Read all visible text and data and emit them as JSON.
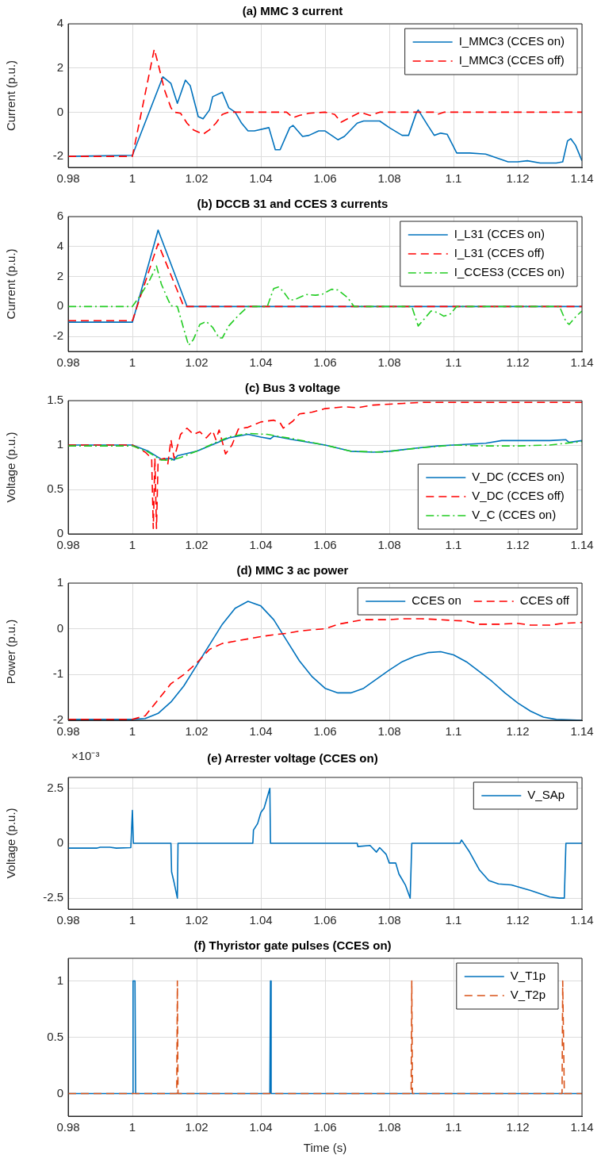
{
  "chart_data": [
    {
      "type": "line",
      "title": "(a) MMC 3 current",
      "ylabel": "Current (p.u.)",
      "xlim": [
        0.98,
        1.14
      ],
      "xticks": [
        0.98,
        1,
        1.02,
        1.04,
        1.06,
        1.08,
        1.1,
        1.12,
        1.14
      ],
      "ylim": [
        -2.5,
        4
      ],
      "yticks": [
        -2,
        0,
        2,
        4
      ],
      "grid": true,
      "legend": "top right",
      "series": [
        {
          "name": "I_MMC3 (CCES on)",
          "color": "#0072bd",
          "line_style": "solid",
          "x": [
            0.98,
            1.0,
            1.0095,
            1.012,
            1.014,
            1.0165,
            1.018,
            1.0205,
            1.022,
            1.024,
            1.025,
            1.028,
            1.03,
            1.032,
            1.034,
            1.036,
            1.038,
            1.0425,
            1.0445,
            1.046,
            1.049,
            1.05,
            1.053,
            1.055,
            1.058,
            1.06,
            1.064,
            1.066,
            1.07,
            1.072,
            1.077,
            1.08,
            1.084,
            1.086,
            1.0885,
            1.089,
            1.092,
            1.094,
            1.096,
            1.098,
            1.101,
            1.105,
            1.11,
            1.117,
            1.12,
            1.123,
            1.127,
            1.132,
            1.134,
            1.1355,
            1.1365,
            1.138,
            1.14
          ],
          "values": [
            -2,
            -1.95,
            1.6,
            1.3,
            0.4,
            1.45,
            1.2,
            -0.2,
            -0.3,
            0.1,
            0.7,
            0.9,
            0.2,
            0,
            -0.5,
            -0.85,
            -0.85,
            -0.7,
            -1.7,
            -1.7,
            -0.7,
            -0.6,
            -1.1,
            -1.05,
            -0.85,
            -0.85,
            -1.25,
            -1.1,
            -0.5,
            -0.4,
            -0.4,
            -0.7,
            -1.05,
            -1.05,
            0,
            0.1,
            -0.6,
            -1.05,
            -0.95,
            -1,
            -1.85,
            -1.85,
            -1.9,
            -2.25,
            -2.25,
            -2.2,
            -2.3,
            -2.3,
            -2.25,
            -1.3,
            -1.2,
            -1.5,
            -2.2
          ]
        },
        {
          "name": "I_MMC3 (CCES off)",
          "color": "#ff0000",
          "line_style": "dashed",
          "x": [
            0.98,
            1.0,
            1.0068,
            1.008,
            1.01,
            1.012,
            1.013,
            1.015,
            1.017,
            1.019,
            1.022,
            1.024,
            1.026,
            1.028,
            1.03,
            1.048,
            1.05,
            1.052,
            1.055,
            1.06,
            1.063,
            1.065,
            1.067,
            1.069,
            1.071,
            1.074,
            1.077,
            1.094,
            1.095,
            1.097,
            1.14
          ],
          "values": [
            -2,
            -2,
            2.85,
            2.2,
            1,
            0.2,
            0,
            -0.05,
            -0.5,
            -0.8,
            -1,
            -0.8,
            -0.5,
            -0.1,
            0,
            0,
            -0.25,
            -0.15,
            -0.05,
            0,
            -0.1,
            -0.45,
            -0.3,
            -0.15,
            0,
            -0.15,
            0,
            0,
            -0.1,
            0,
            0
          ]
        }
      ]
    },
    {
      "type": "line",
      "title": "(b) DCCB 31 and CCES 3 currents",
      "ylabel": "Current (p.u.)",
      "xlim": [
        0.98,
        1.14
      ],
      "xticks": [
        0.98,
        1,
        1.02,
        1.04,
        1.06,
        1.08,
        1.1,
        1.12,
        1.14
      ],
      "ylim": [
        -3,
        6
      ],
      "yticks": [
        -2,
        0,
        2,
        4,
        6
      ],
      "grid": true,
      "legend": "top right",
      "series": [
        {
          "name": "I_L31 (CCES on)",
          "color": "#0072bd",
          "line_style": "solid",
          "x": [
            0.98,
            1.0,
            1.008,
            1.017,
            1.14
          ],
          "values": [
            -1.05,
            -1.05,
            5.1,
            0,
            0
          ]
        },
        {
          "name": "I_L31 (CCES off)",
          "color": "#ff0000",
          "line_style": "dashed",
          "x": [
            0.98,
            1.0,
            1.008,
            1.016,
            1.14
          ],
          "values": [
            -0.95,
            -0.95,
            4.2,
            0,
            0
          ]
        },
        {
          "name": "I_CCES3 (CCES on)",
          "color": "#22cc22",
          "line_style": "dashdot",
          "x": [
            0.98,
            1.0,
            1.002,
            1.005,
            1.0075,
            1.009,
            1.011,
            1.012,
            1.014,
            1.016,
            1.0175,
            1.019,
            1.021,
            1.023,
            1.025,
            1.027,
            1.028,
            1.03,
            1.033,
            1.036,
            1.042,
            1.044,
            1.0455,
            1.047,
            1.049,
            1.051,
            1.054,
            1.057,
            1.059,
            1.062,
            1.064,
            1.067,
            1.069,
            1.087,
            1.089,
            1.091,
            1.093,
            1.095,
            1.097,
            1.099,
            1.101,
            1.133,
            1.135,
            1.136,
            1.138,
            1.14
          ],
          "values": [
            0,
            0,
            0.6,
            1.6,
            2.7,
            1.5,
            0.5,
            0.05,
            0,
            -1.5,
            -2.6,
            -2.2,
            -1.2,
            -1,
            -1.4,
            -2.1,
            -2.1,
            -1.3,
            -0.6,
            0,
            0,
            1.2,
            1.3,
            1,
            0.4,
            0.5,
            0.8,
            0.75,
            0.8,
            1.15,
            1.1,
            0.6,
            0,
            0,
            -1.3,
            -0.8,
            -0.3,
            -0.4,
            -0.65,
            -0.5,
            0,
            0,
            -1,
            -1.2,
            -0.7,
            -0.3
          ]
        }
      ]
    },
    {
      "type": "line",
      "title": "(c) Bus 3 voltage",
      "ylabel": "Voltage (p.u.)",
      "xlim": [
        0.98,
        1.14
      ],
      "xticks": [
        0.98,
        1,
        1.02,
        1.04,
        1.06,
        1.08,
        1.1,
        1.12,
        1.14
      ],
      "ylim": [
        0,
        1.5
      ],
      "yticks": [
        0,
        0.5,
        1,
        1.5
      ],
      "grid": true,
      "legend": "bottom right",
      "series": [
        {
          "name": "V_DC (CCES on)",
          "color": "#0072bd",
          "line_style": "solid",
          "x": [
            0.98,
            1.0,
            1.005,
            1.009,
            1.012,
            1.013,
            1.014,
            1.02,
            1.026,
            1.03,
            1.036,
            1.04,
            1.043,
            1.044,
            1.05,
            1.06,
            1.068,
            1.075,
            1.08,
            1.087,
            1.095,
            1.1,
            1.11,
            1.115,
            1.13,
            1.135,
            1.136,
            1.14
          ],
          "values": [
            1,
            1,
            0.93,
            0.84,
            0.85,
            0.83,
            0.88,
            0.93,
            1.02,
            1.08,
            1.12,
            1.09,
            1.07,
            1.1,
            1.06,
            1,
            0.93,
            0.92,
            0.93,
            0.96,
            0.99,
            1,
            1.02,
            1.05,
            1.05,
            1.06,
            1.03,
            1.05
          ]
        },
        {
          "name": "V_DC (CCES off)",
          "color": "#ff0000",
          "line_style": "dashed",
          "x": [
            0.98,
            1.0,
            1.004,
            1.006,
            1.0065,
            1.007,
            1.0075,
            1.008,
            1.01,
            1.011,
            1.012,
            1.013,
            1.015,
            1.017,
            1.019,
            1.021,
            1.023,
            1.025,
            1.026,
            1.027,
            1.029,
            1.031,
            1.033,
            1.036,
            1.04,
            1.044,
            1.046,
            1.047,
            1.05,
            1.052,
            1.056,
            1.06,
            1.066,
            1.07,
            1.075,
            1.08,
            1.09,
            1.14
          ],
          "values": [
            1,
            1,
            0.92,
            0.85,
            0.06,
            0.85,
            0.06,
            0.83,
            0.85,
            0.78,
            1.06,
            0.85,
            1.12,
            1.19,
            1.12,
            1.15,
            1.08,
            1.16,
            1.06,
            1.17,
            0.9,
            1,
            1.18,
            1.2,
            1.26,
            1.28,
            1.25,
            1.19,
            1.27,
            1.35,
            1.37,
            1.41,
            1.43,
            1.42,
            1.45,
            1.46,
            1.48,
            1.48
          ]
        },
        {
          "name": "V_C (CCES on)",
          "color": "#22cc22",
          "line_style": "dashdot",
          "x": [
            0.98,
            1.0,
            1.005,
            1.009,
            1.012,
            1.015,
            1.02,
            1.026,
            1.03,
            1.036,
            1.042,
            1.05,
            1.06,
            1.068,
            1.078,
            1.09,
            1.1,
            1.11,
            1.12,
            1.13,
            1.14
          ],
          "values": [
            0.99,
            0.99,
            0.92,
            0.83,
            0.83,
            0.86,
            0.93,
            1.03,
            1.09,
            1.13,
            1.12,
            1.07,
            1,
            0.93,
            0.92,
            0.97,
            1,
            0.99,
            0.99,
            1,
            1.04
          ]
        }
      ]
    },
    {
      "type": "line",
      "title": "(d) MMC 3 ac power",
      "ylabel": "Power (p.u.)",
      "xlim": [
        0.98,
        1.14
      ],
      "xticks": [
        0.98,
        1,
        1.02,
        1.04,
        1.06,
        1.08,
        1.1,
        1.12,
        1.14
      ],
      "ylim": [
        -2,
        1
      ],
      "yticks": [
        -2,
        -1,
        0,
        1
      ],
      "grid": true,
      "legend": "top right",
      "series": [
        {
          "name": "CCES on",
          "color": "#0072bd",
          "line_style": "solid",
          "x": [
            0.98,
            1.0,
            1.004,
            1.008,
            1.012,
            1.016,
            1.02,
            1.024,
            1.028,
            1.032,
            1.036,
            1.04,
            1.044,
            1.048,
            1.052,
            1.056,
            1.06,
            1.064,
            1.068,
            1.072,
            1.076,
            1.08,
            1.084,
            1.088,
            1.092,
            1.096,
            1.1,
            1.104,
            1.108,
            1.112,
            1.116,
            1.12,
            1.124,
            1.128,
            1.132,
            1.14
          ],
          "values": [
            -1.98,
            -1.98,
            -1.96,
            -1.85,
            -1.6,
            -1.25,
            -0.8,
            -0.35,
            0.1,
            0.45,
            0.6,
            0.5,
            0.2,
            -0.25,
            -0.7,
            -1.05,
            -1.3,
            -1.4,
            -1.4,
            -1.3,
            -1.1,
            -0.9,
            -0.72,
            -0.6,
            -0.52,
            -0.5,
            -0.57,
            -0.72,
            -0.93,
            -1.15,
            -1.4,
            -1.62,
            -1.8,
            -1.93,
            -1.98,
            -2
          ]
        },
        {
          "name": "CCES off",
          "color": "#ff0000",
          "line_style": "dashed",
          "x": [
            0.98,
            1.0,
            1.004,
            1.008,
            1.012,
            1.016,
            1.02,
            1.024,
            1.028,
            1.032,
            1.036,
            1.04,
            1.044,
            1.048,
            1.052,
            1.056,
            1.06,
            1.064,
            1.068,
            1.072,
            1.08,
            1.084,
            1.09,
            1.096,
            1.1,
            1.104,
            1.108,
            1.114,
            1.12,
            1.124,
            1.13,
            1.134,
            1.14
          ],
          "values": [
            -1.98,
            -1.98,
            -1.9,
            -1.55,
            -1.2,
            -1,
            -0.75,
            -0.45,
            -0.32,
            -0.27,
            -0.22,
            -0.17,
            -0.13,
            -0.1,
            -0.05,
            -0.02,
            0,
            0.1,
            0.15,
            0.2,
            0.2,
            0.22,
            0.22,
            0.2,
            0.18,
            0.17,
            0.1,
            0.1,
            0.12,
            0.08,
            0.08,
            0.12,
            0.14
          ]
        }
      ]
    },
    {
      "type": "line",
      "title": "(e) Arrester voltage (CCES on)",
      "ylabel": "Voltage (p.u.)",
      "annotations": [
        "×10⁻³"
      ],
      "xlim": [
        0.98,
        1.14
      ],
      "xticks": [
        0.98,
        1,
        1.02,
        1.04,
        1.06,
        1.08,
        1.1,
        1.12,
        1.14
      ],
      "ylim": [
        -3,
        3
      ],
      "yticks": [
        -2.5,
        0,
        2.5
      ],
      "grid": true,
      "legend": "top right",
      "series": [
        {
          "name": "V_SAp",
          "color": "#0072bd",
          "line_style": "solid",
          "x": [
            0.98,
            0.989,
            0.99,
            0.993,
            0.995,
            0.9995,
            1.0,
            1.0003,
            1.012,
            1.0122,
            1.013,
            1.014,
            1.0142,
            1.0375,
            1.0377,
            1.039,
            1.04,
            1.041,
            1.0428,
            1.043,
            1.07,
            1.0702,
            1.074,
            1.076,
            1.077,
            1.079,
            1.08,
            1.082,
            1.083,
            1.085,
            1.0865,
            1.087,
            1.102,
            1.1025,
            1.105,
            1.108,
            1.111,
            1.114,
            1.118,
            1.124,
            1.13,
            1.133,
            1.1345,
            1.135,
            1.14
          ],
          "values": [
            -0.22,
            -0.22,
            -0.18,
            -0.18,
            -0.22,
            -0.2,
            1.5,
            0,
            0,
            -1.3,
            -1.8,
            -2.5,
            0,
            0,
            0.6,
            0.9,
            1.4,
            1.6,
            2.5,
            0,
            0,
            -0.15,
            -0.1,
            -0.4,
            -0.2,
            -0.5,
            -0.9,
            -0.9,
            -1.4,
            -1.9,
            -2.5,
            0,
            0,
            0.15,
            -0.4,
            -1.2,
            -1.7,
            -1.85,
            -1.9,
            -2.15,
            -2.45,
            -2.5,
            -2.5,
            0,
            0
          ]
        }
      ]
    },
    {
      "type": "line",
      "title": "(f) Thyristor gate pulses (CCES on)",
      "xlabel": "Time (s)",
      "xlim": [
        0.98,
        1.14
      ],
      "xticks": [
        0.98,
        1,
        1.02,
        1.04,
        1.06,
        1.08,
        1.1,
        1.12,
        1.14
      ],
      "ylim": [
        -0.2,
        1.2
      ],
      "yticks": [
        0,
        0.5,
        1
      ],
      "grid": true,
      "legend": "top right",
      "series": [
        {
          "name": "V_T1p",
          "color": "#0072bd",
          "line_style": "solid",
          "x": [
            0.98,
            1.0,
            1.0002,
            1.0008,
            1.001,
            1.0428,
            1.043,
            1.0432,
            1.14
          ],
          "values": [
            0,
            0,
            1,
            1,
            0,
            0,
            1,
            0,
            0
          ]
        },
        {
          "name": "V_T2p",
          "color": "#d95319",
          "line_style": "dashed",
          "x": [
            0.98,
            1.0138,
            1.014,
            1.0142,
            1.0868,
            1.087,
            1.0872,
            1.1338,
            1.134,
            1.1345,
            1.14
          ],
          "values": [
            0,
            0,
            1,
            0,
            0,
            1,
            0,
            0,
            1,
            0,
            0
          ]
        }
      ]
    }
  ]
}
